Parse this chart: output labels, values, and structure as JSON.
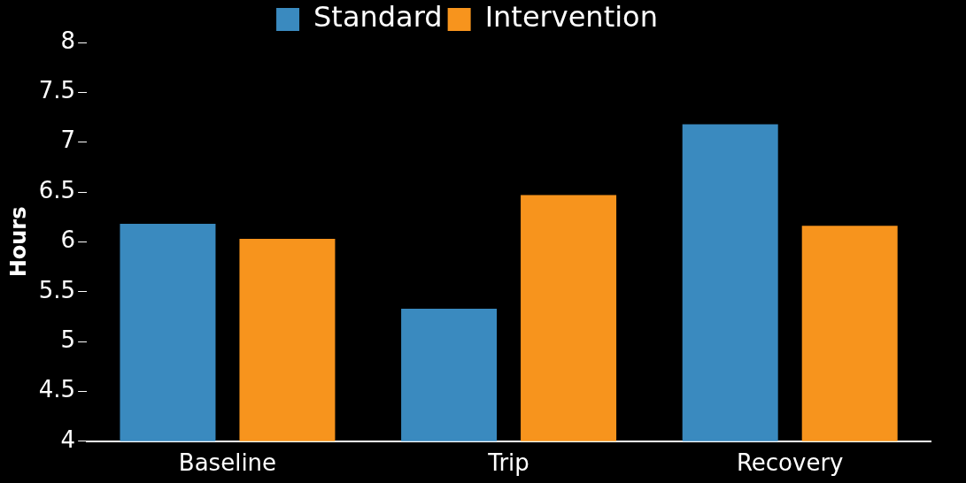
{
  "chart_data": {
    "type": "bar",
    "ylabel": "Hours",
    "categories": [
      "Baseline",
      "Trip",
      "Recovery"
    ],
    "series": [
      {
        "name": "Standard",
        "color": "#3a8abf",
        "values": [
          6.18,
          5.33,
          7.18
        ]
      },
      {
        "name": "Intervention",
        "color": "#f7941d",
        "values": [
          6.03,
          6.47,
          6.16
        ]
      }
    ],
    "ylim": [
      4,
      8
    ],
    "yticks": [
      4,
      4.5,
      5,
      5.5,
      6,
      6.5,
      7,
      7.5,
      8
    ],
    "grid": false,
    "legend": "top"
  }
}
